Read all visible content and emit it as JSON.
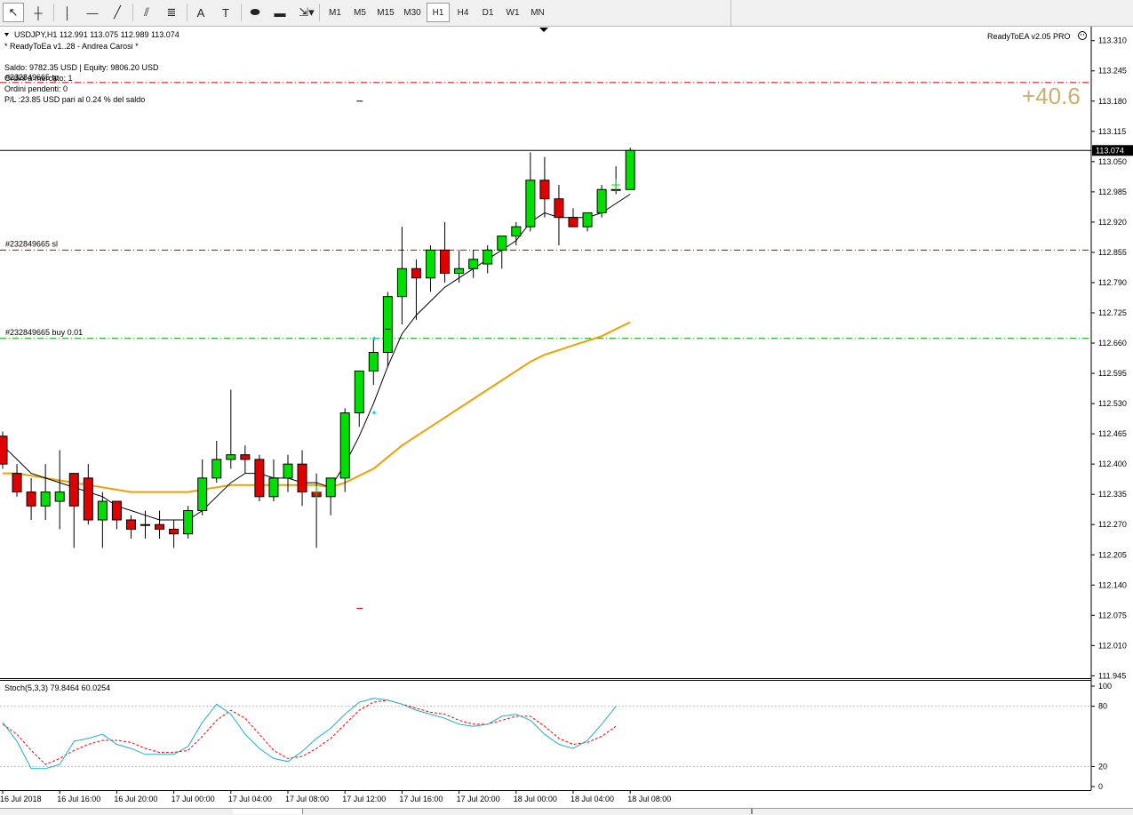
{
  "toolbar": {
    "tools": [
      {
        "name": "cursor-icon",
        "glyph": "↖"
      },
      {
        "name": "crosshair-icon",
        "glyph": "┼"
      },
      {
        "name": "vertical-line-icon",
        "glyph": "│"
      },
      {
        "name": "horizontal-line-icon",
        "glyph": "—"
      },
      {
        "name": "trendline-icon",
        "glyph": "╱"
      },
      {
        "name": "equidistant-channel-icon",
        "glyph": "⫽"
      },
      {
        "name": "fibonacci-icon",
        "glyph": "≣"
      },
      {
        "name": "text-icon",
        "glyph": "A"
      },
      {
        "name": "text-label-icon",
        "glyph": "T"
      },
      {
        "name": "ellipse-icon",
        "glyph": "⬬"
      },
      {
        "name": "rectangle-icon",
        "glyph": "▬"
      },
      {
        "name": "arrows-icon",
        "glyph": "⇲▾"
      }
    ],
    "timeframes": [
      "M1",
      "M5",
      "M15",
      "M30",
      "H1",
      "H4",
      "D1",
      "W1",
      "MN"
    ],
    "active_timeframe": "H1"
  },
  "info": {
    "symbol_line": "USDJPY,H1  112.991 113.075 112.989 113.074",
    "ea_line": "* ReadyToEa v1..28 - Andrea Carosi *",
    "balance_line": "Saldo: 9782.35 USD  |  Equity: 9806.20 USD",
    "market_orders": "Ordini a mercato: 1",
    "pending_orders": "Ordini pendenti: 0",
    "pl_line": "P/L :23.85 USD pari al 0.24 % del saldo",
    "ea_badge": "ReadyToEA  v2.05 PRO",
    "pips": "+40.6",
    "tp_label": "#232849665 tp",
    "sl_label": "#232849665 sl",
    "buy_label": "#232849665 buy 0.01",
    "stoch_label": "Stoch(5,3,3) 79.8464 60.0254",
    "current_price": "113.074"
  },
  "colors": {
    "bull": "#00e000",
    "bear": "#e00000",
    "ma_fast": "#000000",
    "ma_slow": "#f0a000",
    "stoch_main": "#20b0c0",
    "stoch_signal": "#ff0000",
    "level_red": "#c00000",
    "level_green": "#00a000",
    "pips": "#c8b070"
  },
  "chart_data": [
    {
      "type": "candlestick",
      "symbol": "USDJPY",
      "timeframe": "H1",
      "ylim": [
        111.94,
        113.34
      ],
      "yticks": [
        "113.310",
        "113.245",
        "113.180",
        "113.115",
        "113.050",
        "112.985",
        "112.920",
        "112.855",
        "112.790",
        "112.725",
        "112.660",
        "112.595",
        "112.530",
        "112.465",
        "112.400",
        "112.335",
        "112.270",
        "112.205",
        "112.140",
        "112.075",
        "112.010",
        "111.945"
      ],
      "xticks": [
        {
          "label": "16 Jul 2018",
          "bar": 0
        },
        {
          "label": "16 Jul 16:00",
          "bar": 4
        },
        {
          "label": "16 Jul 20:00",
          "bar": 8
        },
        {
          "label": "17 Jul 00:00",
          "bar": 12
        },
        {
          "label": "17 Jul 04:00",
          "bar": 16
        },
        {
          "label": "17 Jul 08:00",
          "bar": 20
        },
        {
          "label": "17 Jul 12:00",
          "bar": 24
        },
        {
          "label": "17 Jul 16:00",
          "bar": 28
        },
        {
          "label": "17 Jul 20:00",
          "bar": 32
        },
        {
          "label": "18 Jul 00:00",
          "bar": 36
        },
        {
          "label": "18 Jul 04:00",
          "bar": 40
        },
        {
          "label": "18 Jul 08:00",
          "bar": 44
        }
      ],
      "candles": [
        [
          112.46,
          112.47,
          112.39,
          112.4
        ],
        [
          112.38,
          112.4,
          112.33,
          112.34
        ],
        [
          112.34,
          112.37,
          112.28,
          112.31
        ],
        [
          112.31,
          112.4,
          112.28,
          112.34
        ],
        [
          112.32,
          112.43,
          112.26,
          112.34
        ],
        [
          112.38,
          112.38,
          112.22,
          112.31
        ],
        [
          112.37,
          112.4,
          112.27,
          112.28
        ],
        [
          112.28,
          112.34,
          112.22,
          112.32
        ],
        [
          112.32,
          112.32,
          112.26,
          112.28
        ],
        [
          112.28,
          112.29,
          112.24,
          112.26
        ],
        [
          112.27,
          112.3,
          112.24,
          112.27
        ],
        [
          112.27,
          112.3,
          112.24,
          112.26
        ],
        [
          112.26,
          112.28,
          112.22,
          112.25
        ],
        [
          112.25,
          112.31,
          112.24,
          112.3
        ],
        [
          112.3,
          112.41,
          112.29,
          112.37
        ],
        [
          112.37,
          112.45,
          112.36,
          112.41
        ],
        [
          112.41,
          112.56,
          112.39,
          112.42
        ],
        [
          112.42,
          112.44,
          112.38,
          112.41
        ],
        [
          112.41,
          112.42,
          112.32,
          112.33
        ],
        [
          112.33,
          112.41,
          112.32,
          112.37
        ],
        [
          112.37,
          112.42,
          112.34,
          112.4
        ],
        [
          112.4,
          112.43,
          112.31,
          112.34
        ],
        [
          112.34,
          112.38,
          112.22,
          112.33
        ],
        [
          112.33,
          112.37,
          112.29,
          112.37
        ],
        [
          112.37,
          112.52,
          112.34,
          112.51
        ],
        [
          112.51,
          112.6,
          112.48,
          112.6
        ],
        [
          112.6,
          112.67,
          112.57,
          112.64
        ],
        [
          112.64,
          112.77,
          112.61,
          112.76
        ],
        [
          112.76,
          112.91,
          112.7,
          112.82
        ],
        [
          112.82,
          112.84,
          112.71,
          112.8
        ],
        [
          112.8,
          112.87,
          112.77,
          112.86
        ],
        [
          112.86,
          112.92,
          112.79,
          112.81
        ],
        [
          112.81,
          112.86,
          112.79,
          112.82
        ],
        [
          112.82,
          112.86,
          112.8,
          112.84
        ],
        [
          112.83,
          112.87,
          112.81,
          112.86
        ],
        [
          112.86,
          112.89,
          112.82,
          112.89
        ],
        [
          112.89,
          112.92,
          112.87,
          112.91
        ],
        [
          112.91,
          113.07,
          112.9,
          113.01
        ],
        [
          113.01,
          113.06,
          112.93,
          112.97
        ],
        [
          112.97,
          113.0,
          112.87,
          112.93
        ],
        [
          112.93,
          112.95,
          112.91,
          112.91
        ],
        [
          112.91,
          112.94,
          112.9,
          112.94
        ],
        [
          112.94,
          113.0,
          112.93,
          112.99
        ],
        [
          112.99,
          113.04,
          112.98,
          112.99
        ],
        [
          112.99,
          113.08,
          112.99,
          113.074
        ]
      ],
      "ma_fast": [
        112.44,
        112.41,
        112.38,
        112.37,
        112.36,
        112.35,
        112.34,
        112.33,
        112.31,
        112.3,
        112.29,
        112.28,
        112.28,
        112.28,
        112.3,
        112.33,
        112.36,
        112.38,
        112.38,
        112.37,
        112.37,
        112.36,
        112.36,
        112.35,
        112.4,
        112.46,
        112.53,
        112.61,
        112.68,
        112.72,
        112.75,
        112.78,
        112.8,
        112.82,
        112.84,
        112.86,
        112.88,
        112.92,
        112.94,
        112.93,
        112.93,
        112.93,
        112.94,
        112.96,
        112.98
      ],
      "ma_slow": [
        112.38,
        112.38,
        112.375,
        112.37,
        112.365,
        112.36,
        112.355,
        112.35,
        112.345,
        112.34,
        112.34,
        112.34,
        112.34,
        112.34,
        112.345,
        112.35,
        112.355,
        112.355,
        112.355,
        112.355,
        112.355,
        112.355,
        112.355,
        112.35,
        112.36,
        112.375,
        112.39,
        112.415,
        112.44,
        112.46,
        112.48,
        112.5,
        112.52,
        112.54,
        112.56,
        112.58,
        112.6,
        112.62,
        112.635,
        112.645,
        112.655,
        112.665,
        112.675,
        112.69,
        112.705
      ],
      "levels": [
        {
          "name": "tp",
          "price": 113.22
        },
        {
          "name": "sl",
          "price": 112.86
        },
        {
          "name": "buy",
          "price": 112.67
        },
        {
          "name": "current",
          "price": 113.074
        }
      ],
      "markers": [
        {
          "bar": 26,
          "price": 112.67,
          "kind": "entry"
        },
        {
          "bar": 26,
          "price": 112.51,
          "kind": "entry"
        },
        {
          "bar": 22,
          "price": 112.34,
          "kind": "cross"
        },
        {
          "bar": 43,
          "price": 113.0,
          "kind": "cross"
        },
        {
          "bar": 27,
          "price": 112.69,
          "kind": "tick"
        },
        {
          "bar": 25,
          "price": 113.18,
          "kind": "dash"
        },
        {
          "bar": 25,
          "price": 112.09,
          "kind": "dash-red"
        }
      ]
    },
    {
      "type": "line",
      "title": "Stoch(5,3,3) 79.8464 60.0254",
      "ylim": [
        0,
        100
      ],
      "yticks": [
        "100",
        "80",
        "20",
        "0"
      ],
      "levels": [
        80,
        20
      ],
      "series": [
        {
          "name": "main",
          "values": [
            64,
            45,
            18,
            18,
            22,
            45,
            48,
            52,
            42,
            38,
            32,
            32,
            32,
            40,
            64,
            82,
            72,
            52,
            38,
            28,
            25,
            35,
            48,
            58,
            72,
            84,
            88,
            86,
            82,
            76,
            72,
            68,
            62,
            60,
            62,
            70,
            72,
            66,
            52,
            42,
            38,
            46,
            62,
            79.85
          ]
        },
        {
          "name": "signal",
          "values": [
            62,
            52,
            36,
            22,
            28,
            36,
            42,
            46,
            46,
            44,
            38,
            34,
            34,
            36,
            50,
            66,
            76,
            68,
            52,
            36,
            28,
            30,
            38,
            48,
            62,
            76,
            84,
            86,
            82,
            78,
            74,
            72,
            66,
            62,
            62,
            66,
            70,
            70,
            60,
            48,
            42,
            44,
            50,
            60.03
          ]
        }
      ]
    }
  ]
}
